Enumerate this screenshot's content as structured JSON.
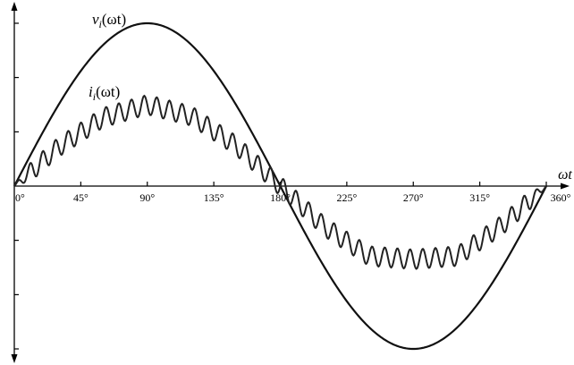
{
  "chart_data": {
    "type": "line",
    "xlabel": "ωt",
    "x_ticks": [
      "0°",
      "45°",
      "90°",
      "135°",
      "180°",
      "225°",
      "270°",
      "315°",
      "360°"
    ],
    "x_tick_values": [
      0,
      45,
      90,
      135,
      180,
      225,
      270,
      315,
      360
    ],
    "xlim": [
      0,
      360
    ],
    "ylim": [
      -1,
      1
    ],
    "y_tick_values": [
      -1,
      -0.667,
      -0.333,
      0,
      0.333,
      0.667,
      1
    ],
    "grid": false,
    "series": [
      {
        "name": "vi(ωt)",
        "name_main": "v",
        "name_sub": "i",
        "name_arg": "(ωt)",
        "x": [
          0,
          30,
          60,
          90,
          120,
          150,
          180,
          210,
          240,
          270,
          300,
          330,
          360
        ],
        "values": [
          0,
          0.5,
          0.866,
          1,
          0.866,
          0.5,
          0,
          -0.5,
          -0.866,
          -1,
          -0.866,
          -0.5,
          0
        ]
      },
      {
        "name": "ii(ωt)",
        "name_main": "i",
        "name_sub": "i",
        "name_arg": "(ωt)",
        "x": [
          0,
          30,
          60,
          90,
          120,
          150,
          180,
          210,
          240,
          270,
          300,
          330,
          360
        ],
        "values": [
          0,
          0.24,
          0.42,
          0.5,
          0.43,
          0.25,
          0,
          -0.25,
          -0.43,
          -0.45,
          -0.43,
          -0.24,
          0
        ],
        "ripple_amplitude": 0.06,
        "ripple_cycles": 42
      }
    ]
  }
}
